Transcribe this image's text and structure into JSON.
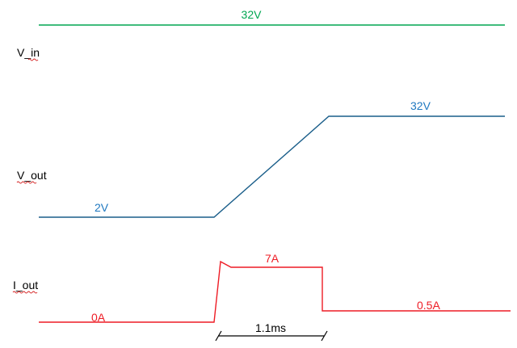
{
  "signals": {
    "v_in": {
      "name": "V_in",
      "level_label": "32V",
      "color": "#00a651"
    },
    "v_out": {
      "name": "V_out",
      "low_label": "2V",
      "high_label": "32V",
      "color": "#1a5e8a",
      "label_color": "#1f78c0"
    },
    "i_out": {
      "name": "I_out",
      "initial_label": "0A",
      "peak_label": "7A",
      "final_label": "0.5A",
      "color": "#ee1c25"
    }
  },
  "timing": {
    "duration_label": "1.1ms",
    "color": "#000000"
  },
  "spellcheck_underline_color": "#d42020"
}
